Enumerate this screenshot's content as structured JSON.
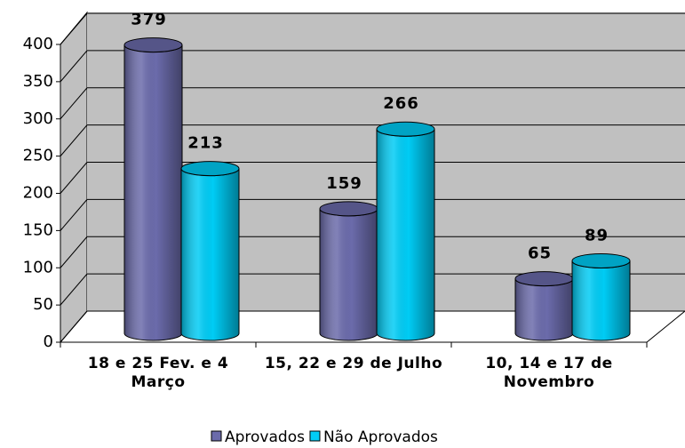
{
  "chart_data": {
    "type": "bar",
    "categories": [
      "18 e 25 Fev. e 4 Março",
      "15, 22 e 29 de Julho",
      "10, 14 e 17 de Novembro"
    ],
    "series": [
      {
        "name": "Aprovados",
        "color": "#6b6bab",
        "values": [
          379,
          159,
          65
        ]
      },
      {
        "name": "Não Aprovados",
        "color": "#00ccf5",
        "values": [
          213,
          266,
          89
        ]
      }
    ],
    "ylim": [
      0,
      400
    ],
    "yticks": [
      0,
      50,
      100,
      150,
      200,
      250,
      300,
      350,
      400
    ],
    "grid": true,
    "legend": "bottom"
  }
}
